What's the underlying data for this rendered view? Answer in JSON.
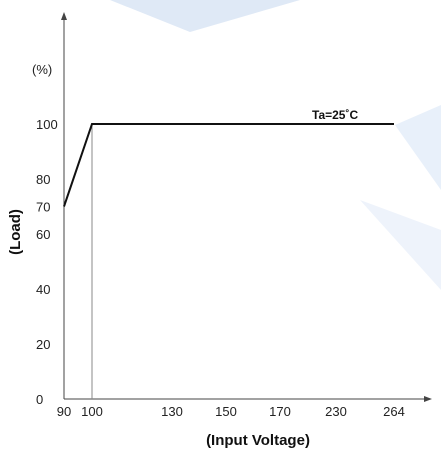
{
  "chart_data": {
    "type": "line",
    "title": "",
    "xlabel": "(Input Voltage)",
    "ylabel": "(Load)",
    "y_unit": "(%)",
    "x_categories": [
      "90",
      "100",
      "130",
      "150",
      "170",
      "230",
      "264"
    ],
    "y_ticks": [
      0,
      20,
      40,
      60,
      70,
      80,
      100
    ],
    "ylim": [
      0,
      100
    ],
    "series": [
      {
        "x": [
          "90",
          "100",
          "264"
        ],
        "y": [
          70,
          100,
          100
        ]
      }
    ],
    "annotation": "Ta=25˚C",
    "grid": false,
    "colors": {
      "line": "#111111",
      "axis": "#444444",
      "guide": "#888888",
      "watermark": "#dfe9f6"
    }
  }
}
